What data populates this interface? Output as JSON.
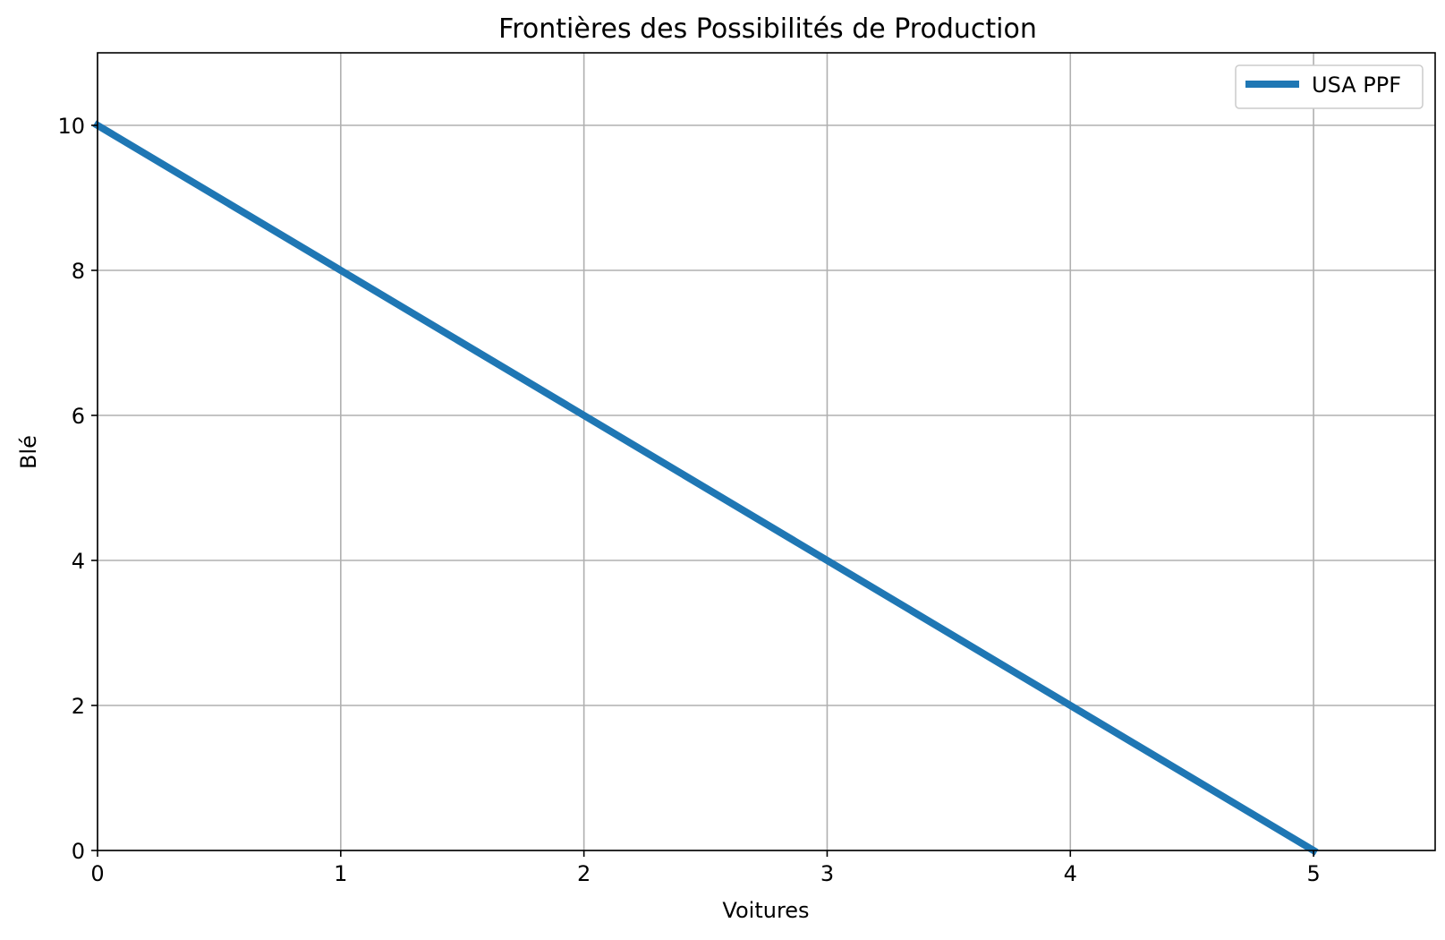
{
  "chart_data": {
    "type": "line",
    "title": "Frontières des Possibilités de Production",
    "xlabel": "Voitures",
    "ylabel": "Blé",
    "xlim": [
      0,
      5.5
    ],
    "ylim": [
      0,
      11
    ],
    "x_ticks": [
      0,
      1,
      2,
      3,
      4,
      5
    ],
    "y_ticks": [
      0,
      2,
      4,
      6,
      8,
      10
    ],
    "x_tick_labels": [
      "0",
      "1",
      "2",
      "3",
      "4",
      "5"
    ],
    "y_tick_labels": [
      "0",
      "2",
      "4",
      "6",
      "8",
      "10"
    ],
    "grid": true,
    "legend_position": "top-right",
    "series": [
      {
        "name": "USA PPF",
        "color": "#1f77b4",
        "x": [
          0,
          5
        ],
        "y": [
          10,
          0
        ]
      }
    ]
  }
}
